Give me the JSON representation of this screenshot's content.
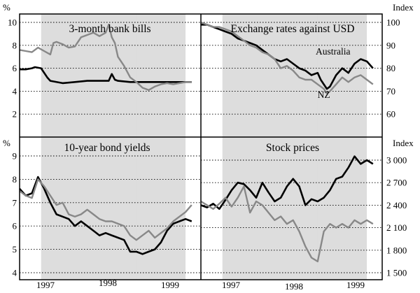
{
  "colors": {
    "shade": "#dddddd",
    "australia_series": "#000000",
    "nz_series": "#888888"
  },
  "x_axis_labels": [
    "1997",
    "1998",
    "1999"
  ],
  "chart_data": [
    {
      "type": "line",
      "title": "3-month bank bills",
      "unit_label": "%",
      "unit_side": "left",
      "ylim": [
        0,
        10
      ],
      "y_ticks": [
        2,
        4,
        6,
        8,
        10
      ],
      "y_tick_labels": [
        "2",
        "4",
        "6",
        "8",
        "10"
      ],
      "x_range": [
        1996.5,
        1999.45
      ],
      "shaded_periods": [
        [
          1996.85,
          1999.2
        ],
        [
          1998.4,
          1998.7
        ]
      ],
      "grid": "horizontal dotted",
      "annotations": [],
      "series": [
        {
          "key": "australia",
          "x": [
            1996.5,
            1996.6,
            1996.7,
            1996.75,
            1996.85,
            1996.95,
            1997.0,
            1997.2,
            1997.4,
            1997.6,
            1997.8,
            1997.95,
            1998.0,
            1998.05,
            1998.1,
            1998.3,
            1998.5,
            1998.7,
            1998.9,
            1999.1,
            1999.3
          ],
          "values": [
            5.9,
            5.9,
            6.0,
            6.1,
            6.0,
            5.2,
            4.9,
            4.7,
            4.8,
            4.9,
            4.9,
            4.9,
            5.5,
            5.0,
            4.9,
            4.8,
            4.8,
            4.8,
            4.8,
            4.8,
            4.8
          ]
        },
        {
          "key": "nz",
          "x": [
            1996.5,
            1996.6,
            1996.7,
            1996.8,
            1996.9,
            1997.0,
            1997.05,
            1997.1,
            1997.2,
            1997.3,
            1997.4,
            1997.5,
            1997.6,
            1997.7,
            1997.8,
            1997.9,
            1997.95,
            1998.0,
            1998.05,
            1998.1,
            1998.2,
            1998.3,
            1998.4,
            1998.5,
            1998.6,
            1998.7,
            1998.8,
            1998.9,
            1999.0,
            1999.1,
            1999.2,
            1999.3
          ],
          "values": [
            7.6,
            7.5,
            7.4,
            7.8,
            7.5,
            7.2,
            8.2,
            8.3,
            8.1,
            7.8,
            7.9,
            8.7,
            8.9,
            9.1,
            8.8,
            9.1,
            9.8,
            8.7,
            8.2,
            7.0,
            6.2,
            5.2,
            4.8,
            4.3,
            4.1,
            4.4,
            4.6,
            4.7,
            4.6,
            4.7,
            4.8,
            4.8
          ]
        }
      ]
    },
    {
      "type": "line",
      "title": "Exchange rates against USD",
      "unit_label": "Index",
      "unit_side": "right",
      "ylim": [
        50,
        100
      ],
      "y_ticks": [
        60,
        70,
        80,
        90,
        100
      ],
      "y_tick_labels": [
        "60",
        "70",
        "80",
        "90",
        "100"
      ],
      "x_range": [
        1996.5,
        1999.45
      ],
      "shaded_periods": [
        [
          1996.85,
          1999.2
        ],
        [
          1998.4,
          1998.7
        ]
      ],
      "grid": "horizontal dotted",
      "annotations": [
        {
          "text": "Australia",
          "x": 1998.65,
          "y": 86,
          "anchor": "middle"
        },
        {
          "text": "NZ",
          "x": 1998.5,
          "y": 67,
          "anchor": "middle"
        }
      ],
      "series": [
        {
          "key": "australia",
          "x": [
            1996.5,
            1996.6,
            1996.7,
            1996.8,
            1996.9,
            1997.0,
            1997.1,
            1997.2,
            1997.3,
            1997.4,
            1997.5,
            1997.6,
            1997.7,
            1997.8,
            1997.9,
            1998.0,
            1998.1,
            1998.2,
            1998.3,
            1998.4,
            1998.45,
            1998.5,
            1998.55,
            1998.6,
            1998.7,
            1998.8,
            1998.9,
            1999.0,
            1999.1,
            1999.2,
            1999.3
          ],
          "values": [
            99,
            99,
            98,
            97,
            96,
            95,
            93,
            92,
            91,
            90,
            88,
            86,
            84,
            83,
            84,
            82,
            80,
            79,
            77,
            78,
            75,
            73,
            71,
            72,
            77,
            80,
            78,
            82,
            84,
            83,
            80
          ]
        },
        {
          "key": "nz",
          "x": [
            1996.5,
            1996.6,
            1996.7,
            1996.8,
            1996.9,
            1997.0,
            1997.1,
            1997.2,
            1997.3,
            1997.4,
            1997.5,
            1997.6,
            1997.7,
            1997.8,
            1997.9,
            1998.0,
            1998.1,
            1998.2,
            1998.3,
            1998.4,
            1998.45,
            1998.5,
            1998.55,
            1998.6,
            1998.7,
            1998.8,
            1998.9,
            1999.0,
            1999.1,
            1999.2,
            1999.3
          ],
          "values": [
            100,
            99,
            98,
            98,
            97,
            96,
            94,
            92,
            90,
            89,
            87,
            86,
            84,
            80,
            81,
            79,
            76,
            75,
            75,
            73,
            72,
            71,
            69,
            70,
            73,
            76,
            74,
            76,
            77,
            75,
            73
          ]
        }
      ]
    },
    {
      "type": "line",
      "title": "10-year bond yields",
      "unit_label": "%",
      "unit_side": "left",
      "ylim": [
        4,
        9.5
      ],
      "y_ticks": [
        4,
        5,
        6,
        7,
        8,
        9
      ],
      "y_tick_labels": [
        "4",
        "5",
        "6",
        "7",
        "8",
        "9"
      ],
      "x_range": [
        1996.5,
        1999.45
      ],
      "shaded_periods": [
        [
          1996.85,
          1999.2
        ],
        [
          1998.4,
          1998.7
        ]
      ],
      "grid": "horizontal dotted",
      "annotations": [],
      "series": [
        {
          "key": "australia",
          "x": [
            1996.5,
            1996.6,
            1996.7,
            1996.8,
            1996.9,
            1997.0,
            1997.1,
            1997.2,
            1997.3,
            1997.4,
            1997.5,
            1997.6,
            1997.7,
            1997.8,
            1997.9,
            1998.0,
            1998.1,
            1998.2,
            1998.3,
            1998.4,
            1998.5,
            1998.6,
            1998.7,
            1998.8,
            1998.9,
            1999.0,
            1999.1,
            1999.2,
            1999.3
          ],
          "values": [
            7.6,
            7.3,
            7.4,
            8.1,
            7.6,
            7.0,
            6.5,
            6.4,
            6.3,
            6.0,
            6.2,
            6.0,
            5.8,
            5.6,
            5.7,
            5.6,
            5.5,
            5.4,
            4.9,
            4.9,
            4.8,
            4.9,
            5.0,
            5.3,
            5.8,
            6.1,
            6.2,
            6.3,
            6.2
          ]
        },
        {
          "key": "nz",
          "x": [
            1996.5,
            1996.6,
            1996.7,
            1996.8,
            1996.9,
            1997.0,
            1997.1,
            1997.2,
            1997.3,
            1997.4,
            1997.5,
            1997.6,
            1997.7,
            1997.8,
            1997.9,
            1998.0,
            1998.1,
            1998.2,
            1998.3,
            1998.4,
            1998.5,
            1998.6,
            1998.7,
            1998.8,
            1998.9,
            1999.0,
            1999.1,
            1999.2,
            1999.3
          ],
          "values": [
            7.5,
            7.3,
            7.2,
            8.0,
            7.7,
            7.3,
            6.9,
            7.0,
            6.5,
            6.4,
            6.5,
            6.7,
            6.5,
            6.3,
            6.2,
            6.2,
            6.1,
            6.0,
            5.6,
            5.4,
            5.6,
            5.8,
            5.5,
            5.7,
            5.9,
            6.2,
            6.4,
            6.6,
            6.9
          ]
        }
      ]
    },
    {
      "type": "line",
      "title": "Stock prices",
      "unit_label": "Index",
      "unit_side": "right",
      "ylim": [
        1500,
        3200
      ],
      "y_ticks": [
        1500,
        1800,
        2100,
        2400,
        2700,
        3000
      ],
      "y_tick_labels": [
        "1 500",
        "1 800",
        "2 100",
        "2 400",
        "2 700",
        "3 000"
      ],
      "x_range": [
        1996.5,
        1999.45
      ],
      "shaded_periods": [
        [
          1996.85,
          1999.2
        ],
        [
          1998.4,
          1998.7
        ]
      ],
      "grid": "horizontal dotted",
      "annotations": [],
      "series": [
        {
          "key": "australia",
          "x": [
            1996.5,
            1996.6,
            1996.7,
            1996.8,
            1996.9,
            1997.0,
            1997.1,
            1997.2,
            1997.3,
            1997.4,
            1997.5,
            1997.6,
            1997.7,
            1997.8,
            1997.9,
            1998.0,
            1998.1,
            1998.2,
            1998.3,
            1998.4,
            1998.5,
            1998.6,
            1998.7,
            1998.8,
            1998.9,
            1999.0,
            1999.1,
            1999.2,
            1999.3
          ],
          "values": [
            2400,
            2370,
            2420,
            2350,
            2470,
            2600,
            2700,
            2680,
            2600,
            2500,
            2700,
            2570,
            2450,
            2500,
            2650,
            2750,
            2650,
            2400,
            2480,
            2450,
            2500,
            2600,
            2750,
            2780,
            2900,
            3050,
            2950,
            3000,
            2950
          ]
        },
        {
          "key": "nz",
          "x": [
            1996.5,
            1996.6,
            1996.7,
            1996.8,
            1996.9,
            1997.0,
            1997.1,
            1997.2,
            1997.3,
            1997.4,
            1997.5,
            1997.6,
            1997.7,
            1997.8,
            1997.9,
            1998.0,
            1998.1,
            1998.2,
            1998.3,
            1998.4,
            1998.5,
            1998.6,
            1998.7,
            1998.8,
            1998.9,
            1999.0,
            1999.1,
            1999.2,
            1999.3
          ],
          "values": [
            2450,
            2400,
            2350,
            2420,
            2500,
            2380,
            2500,
            2650,
            2300,
            2450,
            2400,
            2300,
            2200,
            2250,
            2150,
            2200,
            2050,
            1850,
            1700,
            1650,
            2050,
            2150,
            2100,
            2150,
            2100,
            2200,
            2150,
            2200,
            2150
          ]
        }
      ]
    }
  ]
}
